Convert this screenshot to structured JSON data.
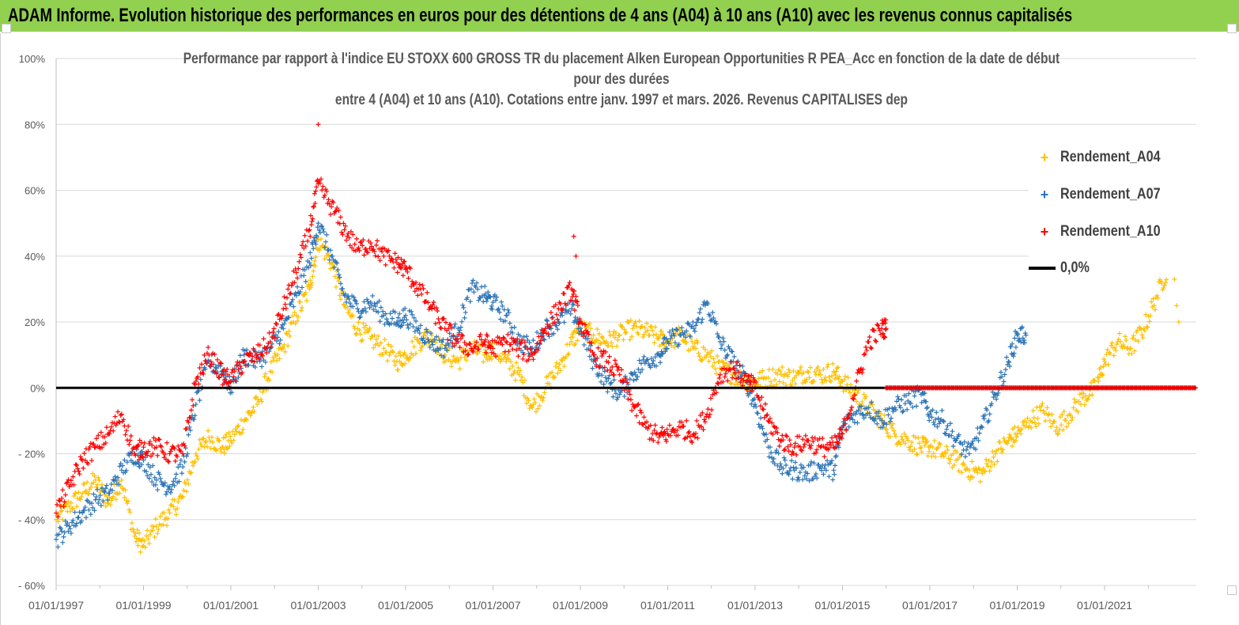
{
  "banner": {
    "title": "ADAM Informe. Evolution historique des performances en euros pour des détentions de 4 ans (A04) à 10 ans (A10) avec les revenus connus capitalisés"
  },
  "chart_data": {
    "type": "scatter",
    "title_lines": [
      "Performance par rapport à l'indice EU STOXX 600 GROSS TR  du placement  Alken European Opportunities R PEA_Acc en fonction de la date de début",
      "pour des durées",
      "entre 4 (A04)  et 10 ans (A10).  Cotations entre janv. 1997 et mars. 2026.  Revenus CAPITALISES dep"
    ],
    "xlabel": "",
    "ylabel": "",
    "x_tick_labels": [
      "01/01/1997",
      "01/01/1999",
      "01/01/2001",
      "01/01/2003",
      "01/01/2005",
      "01/01/2007",
      "01/01/2009",
      "01/01/2011",
      "01/01/2013",
      "01/01/2015",
      "01/01/2017",
      "01/01/2019",
      "01/01/2021"
    ],
    "x_range": [
      1997.0,
      2023.1
    ],
    "y_tick_labels": [
      "100%",
      "80%",
      "60%",
      "40%",
      "20%",
      "0%",
      "- 20%",
      "- 40%",
      "- 60%"
    ],
    "y_ticks": [
      100,
      80,
      60,
      40,
      20,
      0,
      -20,
      -40,
      -60
    ],
    "ylim": [
      -60,
      100
    ],
    "grid": true,
    "zero_line_value": 0,
    "legend_position": "top-right",
    "series": [
      {
        "name": "Rendement_A04",
        "color": "#ffc000",
        "x": [
          1997.0,
          1997.3,
          1997.6,
          1997.9,
          1998.2,
          1998.5,
          1998.8,
          1999.0,
          1999.3,
          1999.6,
          1999.9,
          2000.2,
          2000.5,
          2000.8,
          2001.0,
          2001.3,
          2001.6,
          2001.9,
          2002.2,
          2002.5,
          2002.8,
          2003.0,
          2003.3,
          2003.6,
          2003.9,
          2004.2,
          2004.5,
          2004.8,
          2005.0,
          2005.3,
          2005.6,
          2005.9,
          2006.2,
          2006.5,
          2006.8,
          2007.0,
          2007.3,
          2007.6,
          2007.9,
          2008.2,
          2008.5,
          2008.8,
          2009.0,
          2009.3,
          2009.6,
          2009.9,
          2010.2,
          2010.5,
          2010.8,
          2011.0,
          2011.3,
          2011.6,
          2011.9,
          2012.2,
          2012.5,
          2012.8,
          2013.0,
          2013.3,
          2013.6,
          2013.9,
          2014.2,
          2014.5,
          2014.8,
          2015.0,
          2015.3,
          2015.6,
          2015.9,
          2016.2,
          2016.5,
          2016.8,
          2017.0,
          2017.3,
          2017.6,
          2017.9,
          2018.2,
          2018.5,
          2018.8,
          2019.0,
          2019.3,
          2019.6,
          2019.9,
          2020.2,
          2020.5,
          2020.8,
          2021.0,
          2021.3,
          2021.6,
          2021.9,
          2022.2,
          2022.5
        ],
        "y": [
          -40,
          -36,
          -32,
          -28,
          -35,
          -28,
          -45,
          -48,
          -42,
          -38,
          -33,
          -20,
          -15,
          -18,
          -16,
          -10,
          -5,
          5,
          12,
          22,
          30,
          45,
          38,
          25,
          18,
          15,
          12,
          8,
          10,
          14,
          16,
          10,
          8,
          12,
          10,
          12,
          8,
          4,
          -6,
          0,
          6,
          14,
          18,
          16,
          14,
          16,
          18,
          17,
          15,
          14,
          16,
          12,
          10,
          6,
          4,
          2,
          2,
          3,
          4,
          3,
          5,
          4,
          5,
          2,
          -2,
          -6,
          -10,
          -14,
          -16,
          -18,
          -18,
          -20,
          -22,
          -25,
          -26,
          -20,
          -16,
          -14,
          -10,
          -7,
          -12,
          -8,
          -3,
          0,
          8,
          14,
          12,
          18,
          28,
          38
        ],
        "extra_points": [
          [
            2022.55,
            40
          ],
          [
            2022.6,
            33
          ],
          [
            2022.65,
            25
          ],
          [
            2022.7,
            20
          ]
        ]
      },
      {
        "name": "Rendement_A07",
        "color": "#2e75b6",
        "x": [
          1997.0,
          1997.3,
          1997.6,
          1997.9,
          1998.2,
          1998.5,
          1998.8,
          1999.0,
          1999.3,
          1999.6,
          1999.9,
          2000.2,
          2000.5,
          2000.8,
          2001.0,
          2001.3,
          2001.6,
          2001.9,
          2002.2,
          2002.5,
          2002.8,
          2003.0,
          2003.3,
          2003.6,
          2003.9,
          2004.2,
          2004.5,
          2004.8,
          2005.0,
          2005.3,
          2005.6,
          2005.9,
          2006.2,
          2006.5,
          2006.8,
          2007.0,
          2007.3,
          2007.6,
          2007.9,
          2008.2,
          2008.5,
          2008.8,
          2009.0,
          2009.3,
          2009.6,
          2009.9,
          2010.2,
          2010.5,
          2010.8,
          2011.0,
          2011.3,
          2011.6,
          2011.9,
          2012.2,
          2012.5,
          2012.8,
          2013.0,
          2013.3,
          2013.6,
          2013.9,
          2014.2,
          2014.5,
          2014.8,
          2015.0,
          2015.3,
          2015.6,
          2015.9,
          2016.2,
          2016.5,
          2016.8,
          2017.0,
          2017.3,
          2017.6,
          2017.9,
          2018.2,
          2018.5,
          2018.8,
          2019.0,
          2019.2
        ],
        "y": [
          -46,
          -42,
          -38,
          -34,
          -32,
          -25,
          -20,
          -22,
          -28,
          -30,
          -24,
          -5,
          8,
          5,
          0,
          10,
          8,
          12,
          18,
          28,
          38,
          50,
          40,
          28,
          24,
          26,
          22,
          20,
          22,
          18,
          14,
          12,
          18,
          30,
          28,
          26,
          22,
          14,
          12,
          18,
          20,
          24,
          18,
          8,
          2,
          -2,
          4,
          8,
          10,
          14,
          16,
          18,
          26,
          14,
          8,
          2,
          -5,
          -18,
          -24,
          -25,
          -26,
          -24,
          -25,
          -12,
          -8,
          -6,
          -10,
          -6,
          -4,
          -2,
          -8,
          -10,
          -16,
          -20,
          -12,
          -2,
          8,
          16,
          16
        ],
        "extra_points": []
      },
      {
        "name": "Rendement_A10",
        "color": "#ff0000",
        "x": [
          1997.0,
          1997.3,
          1997.6,
          1997.9,
          1998.2,
          1998.5,
          1998.8,
          1999.0,
          1999.3,
          1999.6,
          1999.9,
          2000.2,
          2000.5,
          2000.8,
          2001.0,
          2001.3,
          2001.6,
          2001.9,
          2002.2,
          2002.5,
          2002.8,
          2003.0,
          2003.3,
          2003.6,
          2003.9,
          2004.2,
          2004.5,
          2004.8,
          2005.0,
          2005.3,
          2005.6,
          2005.9,
          2006.2,
          2006.5,
          2006.8,
          2007.0,
          2007.3,
          2007.6,
          2007.9,
          2008.2,
          2008.5,
          2008.8,
          2009.0,
          2009.3,
          2009.6,
          2009.9,
          2010.2,
          2010.5,
          2010.8,
          2011.0,
          2011.3,
          2011.6,
          2011.9,
          2012.2,
          2012.5,
          2012.8,
          2013.0,
          2013.3,
          2013.6,
          2013.9,
          2014.2,
          2014.5,
          2014.8,
          2015.0,
          2015.3,
          2015.6,
          2015.9,
          2016.0
        ],
        "y": [
          -38,
          -30,
          -22,
          -18,
          -14,
          -8,
          -20,
          -18,
          -18,
          -20,
          -20,
          2,
          10,
          4,
          2,
          8,
          10,
          14,
          24,
          35,
          48,
          62,
          55,
          48,
          42,
          44,
          40,
          38,
          36,
          30,
          24,
          18,
          14,
          12,
          14,
          12,
          14,
          12,
          10,
          18,
          24,
          30,
          20,
          10,
          8,
          4,
          -5,
          -12,
          -15,
          -14,
          -12,
          -14,
          -8,
          4,
          6,
          2,
          0,
          -10,
          -16,
          -18,
          -16,
          -18,
          -18,
          -14,
          0,
          14,
          18,
          18
        ],
        "extra_points": [
          [
            2003.0,
            80
          ],
          [
            2008.85,
            46
          ],
          [
            2008.9,
            40
          ]
        ],
        "flat_segment": {
          "x_start": 2016.0,
          "x_end": 2023.1,
          "value": 0
        }
      }
    ]
  },
  "legend": {
    "items": [
      {
        "label": "Rendement_A04",
        "marker": "+"
      },
      {
        "label": "Rendement_A07",
        "marker": "+"
      },
      {
        "label": "Rendement_A10",
        "marker": "+"
      },
      {
        "label": "0,0%",
        "marker": "line"
      }
    ]
  }
}
